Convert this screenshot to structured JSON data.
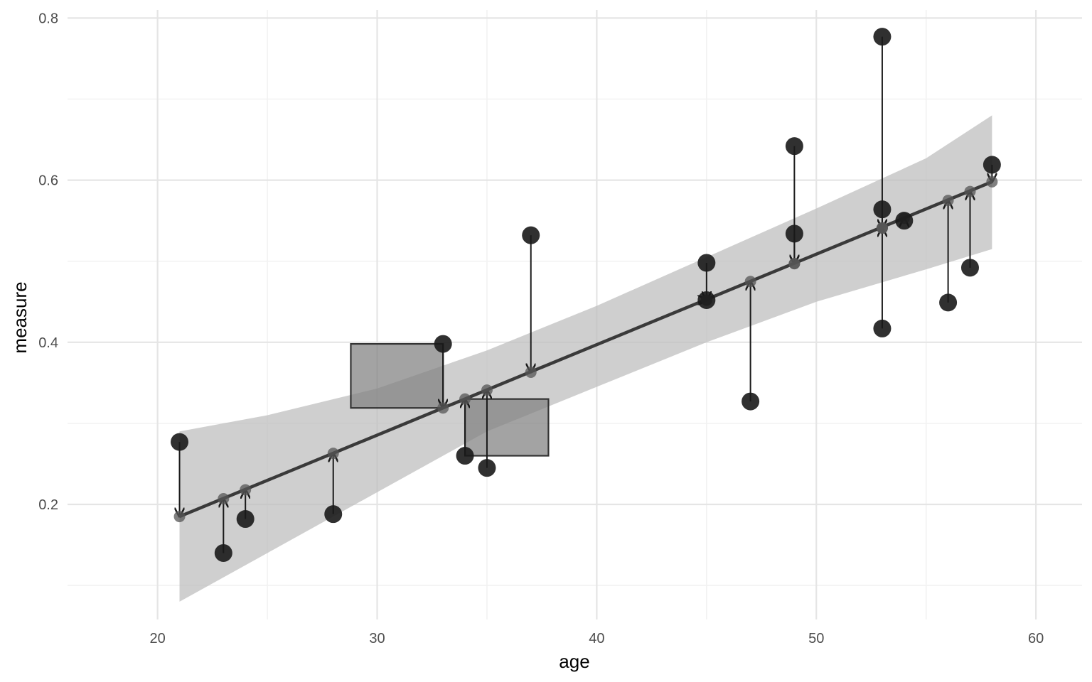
{
  "chart_data": {
    "type": "scatter",
    "title": "",
    "xlabel": "age",
    "ylabel": "measure",
    "xlim": [
      15.9,
      62.1
    ],
    "ylim": [
      0.058,
      0.81
    ],
    "x_ticks": [
      20,
      30,
      40,
      50,
      60
    ],
    "x_tick_labels": [
      "20",
      "30",
      "40",
      "50",
      "60"
    ],
    "x_minor_ticks": [
      25,
      35,
      45,
      55
    ],
    "y_ticks": [
      0.2,
      0.4,
      0.6,
      0.8
    ],
    "y_tick_labels": [
      "0.2",
      "0.4",
      "0.6",
      "0.8"
    ],
    "y_minor_ticks": [
      0.1,
      0.3,
      0.5,
      0.7
    ],
    "grid": true,
    "regression": {
      "x": [
        21,
        58
      ],
      "y": [
        0.185,
        0.598
      ],
      "color": "#3a3a3a"
    },
    "confidence_band": {
      "x": [
        21,
        25,
        30,
        35,
        40,
        45,
        50,
        55,
        58
      ],
      "upper": [
        0.29,
        0.31,
        0.343,
        0.39,
        0.445,
        0.505,
        0.565,
        0.627,
        0.68
      ],
      "lower": [
        0.08,
        0.14,
        0.215,
        0.29,
        0.345,
        0.4,
        0.45,
        0.49,
        0.515
      ],
      "color": "#bdbdbd"
    },
    "points": [
      {
        "x": 21,
        "y": 0.277,
        "fitted": 0.185
      },
      {
        "x": 23,
        "y": 0.14,
        "fitted": 0.207
      },
      {
        "x": 24,
        "y": 0.182,
        "fitted": 0.218
      },
      {
        "x": 28,
        "y": 0.188,
        "fitted": 0.263
      },
      {
        "x": 33,
        "y": 0.398,
        "fitted": 0.319
      },
      {
        "x": 34,
        "y": 0.26,
        "fitted": 0.33
      },
      {
        "x": 35,
        "y": 0.245,
        "fitted": 0.341
      },
      {
        "x": 37,
        "y": 0.532,
        "fitted": 0.363
      },
      {
        "x": 45,
        "y": 0.498,
        "fitted": 0.452
      },
      {
        "x": 45,
        "y": 0.452,
        "fitted": 0.452
      },
      {
        "x": 47,
        "y": 0.327,
        "fitted": 0.475
      },
      {
        "x": 49,
        "y": 0.642,
        "fitted": 0.497
      },
      {
        "x": 49,
        "y": 0.534,
        "fitted": 0.497
      },
      {
        "x": 53,
        "y": 0.777,
        "fitted": 0.541
      },
      {
        "x": 53,
        "y": 0.564,
        "fitted": 0.541
      },
      {
        "x": 53,
        "y": 0.417,
        "fitted": 0.541
      },
      {
        "x": 54,
        "y": 0.55,
        "fitted": 0.553
      },
      {
        "x": 56,
        "y": 0.449,
        "fitted": 0.575
      },
      {
        "x": 57,
        "y": 0.492,
        "fitted": 0.586
      },
      {
        "x": 58,
        "y": 0.619,
        "fitted": 0.598
      }
    ],
    "squares": [
      {
        "x0": 28.8,
        "x1": 33,
        "y0": 0.319,
        "y1": 0.398
      },
      {
        "x0": 34,
        "x1": 37.8,
        "y0": 0.26,
        "y1": 0.33
      }
    ],
    "colors": {
      "point": "#1a1a1a",
      "fitted_point": "#555555",
      "square_fill": "#808080",
      "square_stroke": "#333333",
      "grid_major": "#e5e5e5",
      "grid_minor": "#f2f2f2"
    }
  }
}
